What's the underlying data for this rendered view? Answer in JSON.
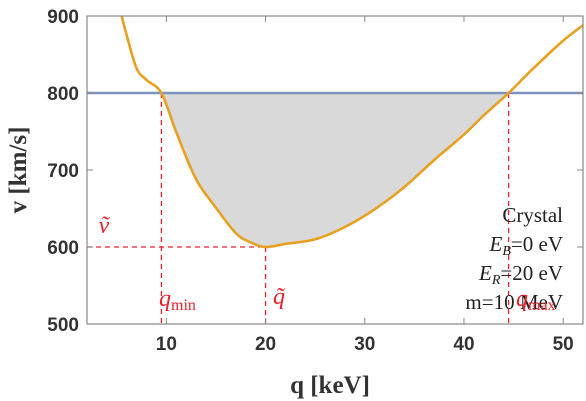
{
  "chart_data": {
    "type": "line",
    "xlabel": "q [keV]",
    "ylabel": "v [km/s]",
    "xlim": [
      2,
      52
    ],
    "ylim": [
      500,
      900
    ],
    "xticks": [
      10,
      20,
      30,
      40,
      50
    ],
    "yticks": [
      500,
      600,
      700,
      800,
      900
    ],
    "grid": false,
    "curve": {
      "color": "#e8a020",
      "x": [
        5.5,
        6,
        7,
        8,
        9.5,
        11,
        13,
        15,
        17,
        18.5,
        20,
        22,
        25,
        28,
        31,
        34,
        37,
        40,
        42,
        44.5,
        47,
        50,
        52
      ],
      "y": [
        900,
        875,
        832,
        817,
        800,
        749,
        688,
        651,
        618,
        606,
        600,
        604,
        610,
        626,
        649,
        678,
        713,
        746,
        771,
        800,
        832,
        868,
        888
      ]
    },
    "horizontal_line": {
      "y": 800,
      "color": "#7f93c0"
    },
    "shaded_region": {
      "between": "curve and v = 800",
      "x_from": 9.5,
      "x_to": 44.5,
      "color": "#d9d9d9"
    },
    "markers": {
      "color": "#e8222d",
      "q_min": {
        "x": 9.5,
        "label": "q",
        "sub": "min"
      },
      "q_tilde": {
        "x": 20,
        "label": "q̃"
      },
      "q_max": {
        "x": 44.5,
        "label": "q",
        "sub": "max"
      },
      "v_tilde": {
        "y": 600,
        "label": "ṽ"
      }
    },
    "annotation": {
      "line1": "Crystal",
      "line2_prefix": "E",
      "line2_sub": "B",
      "line2_suffix": "=0 eV",
      "line3_prefix": "E",
      "line3_sub": "R",
      "line3_suffix": "=20 eV",
      "line4": "m=10 MeV"
    }
  }
}
